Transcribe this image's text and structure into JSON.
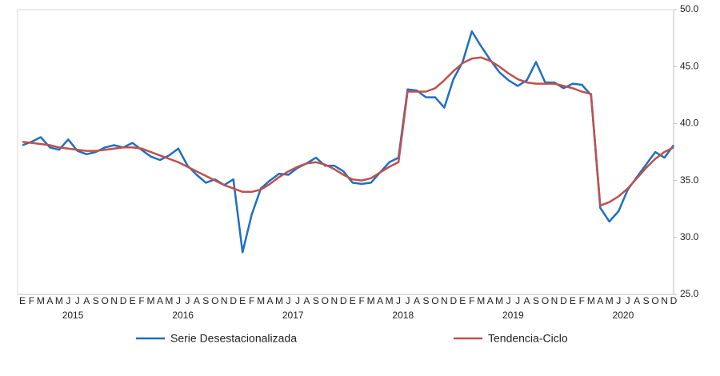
{
  "chart_data": {
    "type": "line",
    "categories": [
      "E",
      "F",
      "M",
      "A",
      "M",
      "J",
      "J",
      "A",
      "S",
      "O",
      "N",
      "D",
      "E",
      "F",
      "M",
      "A",
      "M",
      "J",
      "J",
      "A",
      "S",
      "O",
      "N",
      "D",
      "E",
      "F",
      "M",
      "A",
      "M",
      "J",
      "J",
      "A",
      "S",
      "O",
      "N",
      "D",
      "E",
      "F",
      "M",
      "A",
      "M",
      "J",
      "J",
      "A",
      "S",
      "O",
      "N",
      "D",
      "E",
      "F",
      "M",
      "A",
      "M",
      "J",
      "J",
      "A",
      "S",
      "O",
      "N",
      "D",
      "E",
      "F",
      "M",
      "A",
      "M",
      "J",
      "J",
      "A",
      "S",
      "O",
      "N",
      "D"
    ],
    "years": [
      "2015",
      "2016",
      "2017",
      "2018",
      "2019",
      "2020"
    ],
    "series": [
      {
        "name": "Serie Desestacionalizada",
        "color": "#1f6fc5",
        "values": [
          38.1,
          38.4,
          38.8,
          37.9,
          37.7,
          38.6,
          37.6,
          37.3,
          37.5,
          37.9,
          38.1,
          37.9,
          38.3,
          37.7,
          37.1,
          36.8,
          37.2,
          37.8,
          36.3,
          35.5,
          34.8,
          35.1,
          34.6,
          35.1,
          28.7,
          32.0,
          34.3,
          35.0,
          35.6,
          35.5,
          36.1,
          36.5,
          37.0,
          36.3,
          36.3,
          35.8,
          34.8,
          34.7,
          34.8,
          35.7,
          36.6,
          37.0,
          43.0,
          42.9,
          42.3,
          42.3,
          41.4,
          43.9,
          45.4,
          48.1,
          46.8,
          45.6,
          44.5,
          43.8,
          43.3,
          43.8,
          45.4,
          43.6,
          43.6,
          43.1,
          43.5,
          43.4,
          42.5,
          32.6,
          31.4,
          32.3,
          34.2,
          35.3,
          36.4,
          37.5,
          37.0,
          38.1
        ]
      },
      {
        "name": "Tendencia-Ciclo",
        "color": "#c0504d",
        "values": [
          38.4,
          38.3,
          38.2,
          38.1,
          37.9,
          37.8,
          37.7,
          37.6,
          37.6,
          37.7,
          37.8,
          37.9,
          37.9,
          37.8,
          37.5,
          37.2,
          36.9,
          36.6,
          36.2,
          35.8,
          35.4,
          35.0,
          34.6,
          34.3,
          34.0,
          34.0,
          34.2,
          34.7,
          35.3,
          35.8,
          36.2,
          36.5,
          36.6,
          36.4,
          36.0,
          35.5,
          35.1,
          35.0,
          35.2,
          35.7,
          36.2,
          36.6,
          42.8,
          42.8,
          42.8,
          43.1,
          43.8,
          44.6,
          45.3,
          45.7,
          45.8,
          45.5,
          45.0,
          44.4,
          43.9,
          43.6,
          43.5,
          43.5,
          43.5,
          43.3,
          43.1,
          42.8,
          42.6,
          32.8,
          33.1,
          33.6,
          34.3,
          35.2,
          36.1,
          36.9,
          37.5,
          37.9
        ]
      }
    ],
    "ylim": [
      25,
      50
    ],
    "yticks": [
      {
        "value": 25,
        "label": "25.0"
      },
      {
        "value": 30,
        "label": "30.0"
      },
      {
        "value": 35,
        "label": "35.0"
      },
      {
        "value": 40,
        "label": "40.0"
      },
      {
        "value": 45,
        "label": "45.0"
      },
      {
        "value": 50,
        "label": "50.0"
      }
    ],
    "y_axis_side": "right"
  }
}
